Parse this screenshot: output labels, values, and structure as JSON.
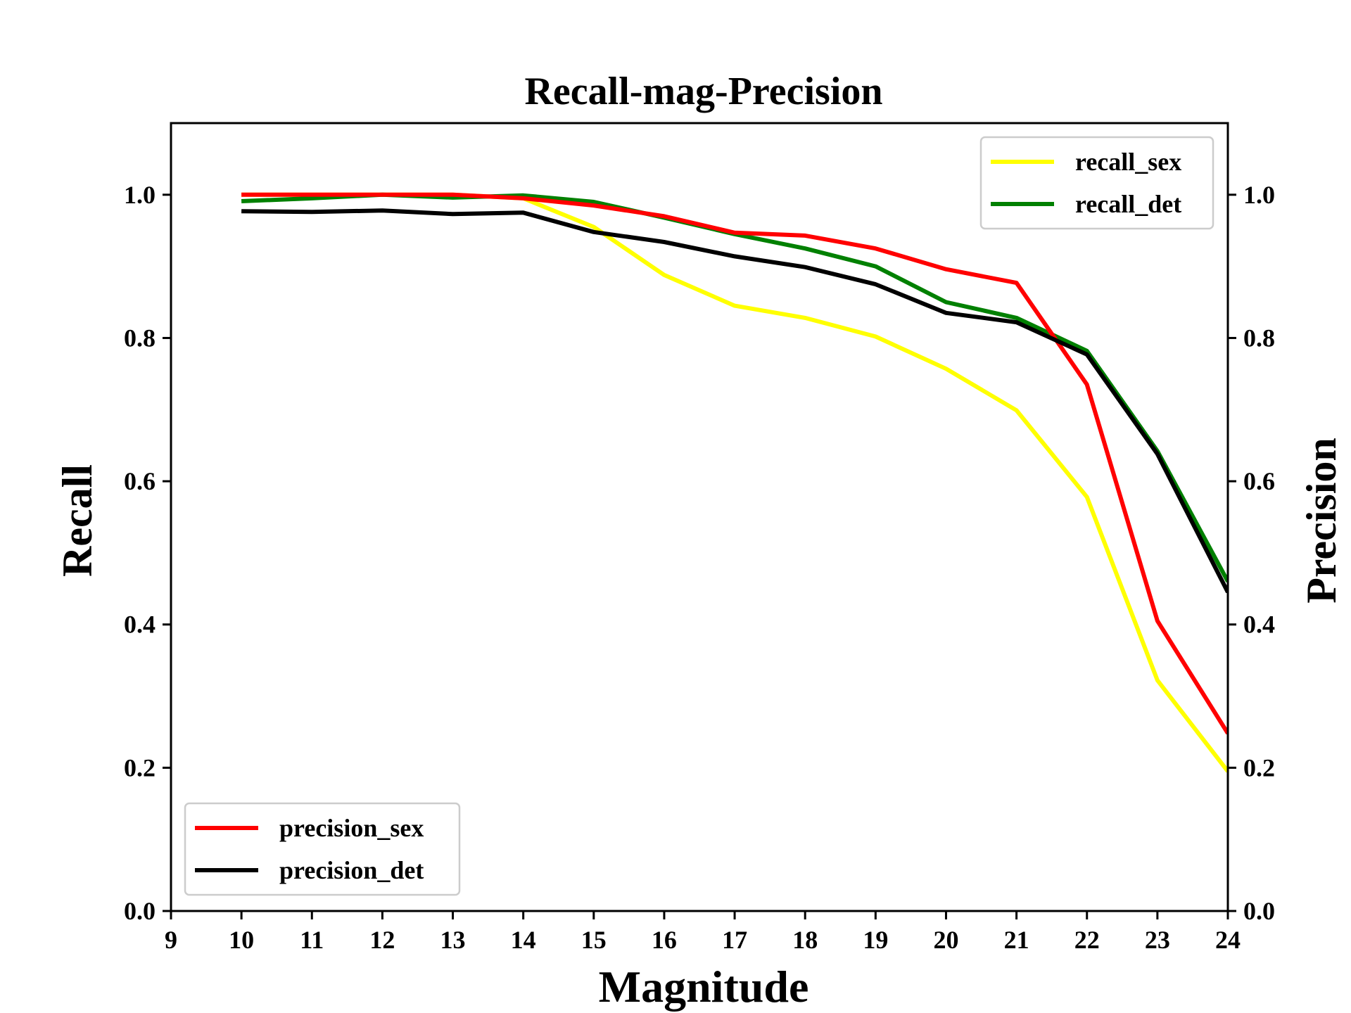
{
  "chart_data": {
    "type": "line",
    "title": "Recall-mag-Precision",
    "xlabel": "Magnitude",
    "ylabel_left": "Recall",
    "ylabel_right": "Precision",
    "xlim": [
      9,
      24
    ],
    "ylim_left": [
      0,
      1.1
    ],
    "ylim_right": [
      0,
      1.1
    ],
    "x_ticks": [
      "9",
      "10",
      "11",
      "12",
      "13",
      "14",
      "15",
      "16",
      "17",
      "18",
      "19",
      "20",
      "21",
      "22",
      "23",
      "24"
    ],
    "y_ticks_left": [
      "0.0",
      "0.2",
      "0.4",
      "0.6",
      "0.8",
      "1.0"
    ],
    "y_ticks_right": [
      "0.0",
      "0.2",
      "0.4",
      "0.6",
      "0.8",
      "1.0"
    ],
    "x": [
      10,
      11,
      12,
      13,
      14,
      15,
      16,
      17,
      18,
      19,
      20,
      21,
      22,
      23,
      24
    ],
    "series": [
      {
        "name": "recall_sex",
        "axis": "left",
        "color": "#ffff00",
        "values": [
          1.0,
          1.0,
          1.0,
          1.0,
          0.995,
          0.955,
          0.888,
          0.845,
          0.828,
          0.802,
          0.757,
          0.699,
          0.578,
          0.322,
          0.195
        ]
      },
      {
        "name": "recall_det",
        "axis": "left",
        "color": "#008000",
        "values": [
          0.991,
          0.995,
          1.0,
          0.996,
          0.999,
          0.99,
          0.968,
          0.945,
          0.925,
          0.9,
          0.85,
          0.828,
          0.782,
          0.642,
          0.46
        ]
      },
      {
        "name": "precision_sex",
        "axis": "right",
        "color": "#ff0000",
        "values": [
          1.0,
          1.0,
          1.0,
          1.0,
          0.995,
          0.985,
          0.97,
          0.947,
          0.943,
          0.925,
          0.896,
          0.877,
          0.735,
          0.405,
          0.248
        ]
      },
      {
        "name": "precision_det",
        "axis": "right",
        "color": "#000000",
        "values": [
          0.977,
          0.976,
          0.978,
          0.973,
          0.975,
          0.948,
          0.934,
          0.914,
          0.899,
          0.875,
          0.835,
          0.822,
          0.777,
          0.638,
          0.445
        ]
      }
    ],
    "legends": [
      {
        "placement": "upper right",
        "entries": [
          "recall_sex",
          "recall_det"
        ]
      },
      {
        "placement": "lower left",
        "entries": [
          "precision_sex",
          "precision_det"
        ]
      }
    ],
    "grid": false
  }
}
